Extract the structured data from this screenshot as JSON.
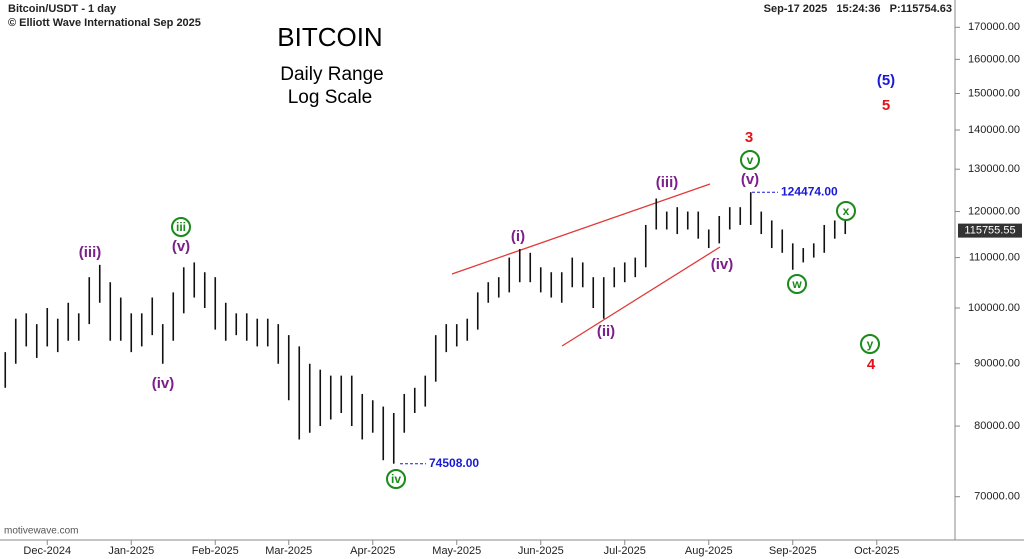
{
  "chart_data": {
    "type": "ohlc",
    "header": {
      "symbol": "Bitcoin/USDT - 1 day",
      "copyright": "© Elliott Wave International Sep 2025",
      "status": "Sep-17 2025   15:24:36   P:115754.63",
      "watermark": "motivewave.com"
    },
    "title": "BITCOIN",
    "subtitle": [
      "Daily Range",
      "Log Scale"
    ],
    "log_scale": true,
    "color": "#111111",
    "categories": [
      null,
      null,
      null,
      null,
      "Dec-2024",
      null,
      null,
      null,
      null,
      null,
      null,
      null,
      "Jan-2025",
      null,
      null,
      null,
      null,
      null,
      null,
      null,
      "Feb-2025",
      null,
      null,
      null,
      null,
      null,
      null,
      "Mar-2025",
      null,
      null,
      null,
      null,
      null,
      null,
      null,
      "Apr-2025",
      null,
      null,
      null,
      null,
      null,
      null,
      null,
      "May-2025",
      null,
      null,
      null,
      null,
      null,
      null,
      null,
      "Jun-2025",
      null,
      null,
      null,
      null,
      null,
      null,
      null,
      "Jul-2025",
      null,
      null,
      null,
      null,
      null,
      null,
      null,
      "Aug-2025",
      null,
      null,
      null,
      null,
      null,
      null,
      null,
      "Sep-2025",
      null,
      null,
      null,
      null,
      null,
      null,
      null,
      "Oct-2025",
      null,
      null,
      null,
      null,
      null,
      null,
      null
    ],
    "high": [
      92000,
      98000,
      99000,
      97000,
      100000,
      98000,
      101000,
      99000,
      106000,
      108500,
      105000,
      102000,
      99000,
      99000,
      102000,
      97000,
      103000,
      108000,
      109000,
      107000,
      106000,
      101000,
      99000,
      99000,
      98000,
      98000,
      97000,
      95000,
      93000,
      90000,
      89000,
      88000,
      88000,
      88000,
      85000,
      84000,
      83000,
      82000,
      85000,
      86000,
      88000,
      95000,
      97000,
      97000,
      98000,
      103000,
      105000,
      106000,
      110000,
      111800,
      111000,
      108000,
      107000,
      107000,
      110000,
      109000,
      106000,
      106000,
      108000,
      109000,
      110000,
      117000,
      123000,
      120000,
      121000,
      120000,
      120000,
      116000,
      119000,
      121000,
      121000,
      124474,
      120000,
      118000,
      116000,
      113000,
      112000,
      113000,
      117000,
      118000,
      118000,
      null,
      null,
      null,
      null,
      null,
      null,
      null,
      null,
      null,
      null
    ],
    "low": [
      86000,
      90000,
      93000,
      91000,
      93000,
      92000,
      94000,
      94000,
      97000,
      101000,
      94000,
      94000,
      92000,
      93000,
      95000,
      90000,
      94000,
      99000,
      102000,
      100000,
      96000,
      94000,
      95000,
      94000,
      93000,
      93000,
      90000,
      84000,
      78000,
      79000,
      80000,
      81000,
      82000,
      80000,
      78000,
      79000,
      75000,
      74508,
      79000,
      82000,
      83000,
      87000,
      92000,
      93000,
      94000,
      96000,
      101000,
      102000,
      103000,
      105000,
      105000,
      103000,
      102000,
      101000,
      104000,
      104000,
      100000,
      98000,
      104000,
      105000,
      106000,
      108000,
      116000,
      116000,
      115000,
      116000,
      114000,
      112000,
      113000,
      116000,
      117000,
      117000,
      115000,
      112000,
      111000,
      107500,
      109000,
      110000,
      111000,
      114000,
      115000,
      null,
      null,
      null,
      null,
      null,
      null,
      null,
      null,
      null,
      null
    ],
    "ylim": [
      64500,
      179000
    ],
    "yticks": [
      {
        "value": 70000,
        "label": "70000.00"
      },
      {
        "value": 80000,
        "label": "80000.00"
      },
      {
        "value": 90000,
        "label": "90000.00"
      },
      {
        "value": 100000,
        "label": "100000.00"
      },
      {
        "value": 110000,
        "label": "110000.00"
      },
      {
        "value": 120000,
        "label": "120000.00"
      },
      {
        "value": 130000,
        "label": "130000.00"
      },
      {
        "value": 140000,
        "label": "140000.00"
      },
      {
        "value": 150000,
        "label": "150000.00"
      },
      {
        "value": 160000,
        "label": "160000.00"
      },
      {
        "value": 170000,
        "label": "170000.00"
      }
    ],
    "last_price": {
      "value": 115755.55,
      "label": "115755.55"
    },
    "price_notes": [
      {
        "value": 124474,
        "label": "124474.00"
      },
      {
        "value": 74508,
        "label": "74508.00"
      }
    ],
    "annotations": [
      {
        "text": "(iii)",
        "color": "#7b1f8a",
        "circled": false
      },
      {
        "text": "(iv)",
        "color": "#7b1f8a",
        "circled": false
      },
      {
        "text": "(v)",
        "color": "#7b1f8a",
        "circled": false
      },
      {
        "text": "iii",
        "color": "#1a8a1a",
        "circled": true
      },
      {
        "text": "iv",
        "color": "#1a8a1a",
        "circled": true
      },
      {
        "text": "(i)",
        "color": "#7b1f8a",
        "circled": false
      },
      {
        "text": "(ii)",
        "color": "#7b1f8a",
        "circled": false
      },
      {
        "text": "(iii)",
        "color": "#7b1f8a",
        "circled": false
      },
      {
        "text": "(iv)",
        "color": "#7b1f8a",
        "circled": false
      },
      {
        "text": "(v)",
        "color": "#7b1f8a",
        "circled": false
      },
      {
        "text": "v",
        "color": "#1a8a1a",
        "circled": true
      },
      {
        "text": "3",
        "color": "#e0141a",
        "circled": false
      },
      {
        "text": "x",
        "color": "#1a8a1a",
        "circled": true
      },
      {
        "text": "w",
        "color": "#1a8a1a",
        "circled": true
      },
      {
        "text": "(5)",
        "color": "#1a1ad6",
        "circled": false
      },
      {
        "text": "5",
        "color": "#e0141a",
        "circled": false
      },
      {
        "text": "y",
        "color": "#1a8a1a",
        "circled": true
      },
      {
        "text": "4",
        "color": "#e0141a",
        "circled": false
      }
    ]
  }
}
